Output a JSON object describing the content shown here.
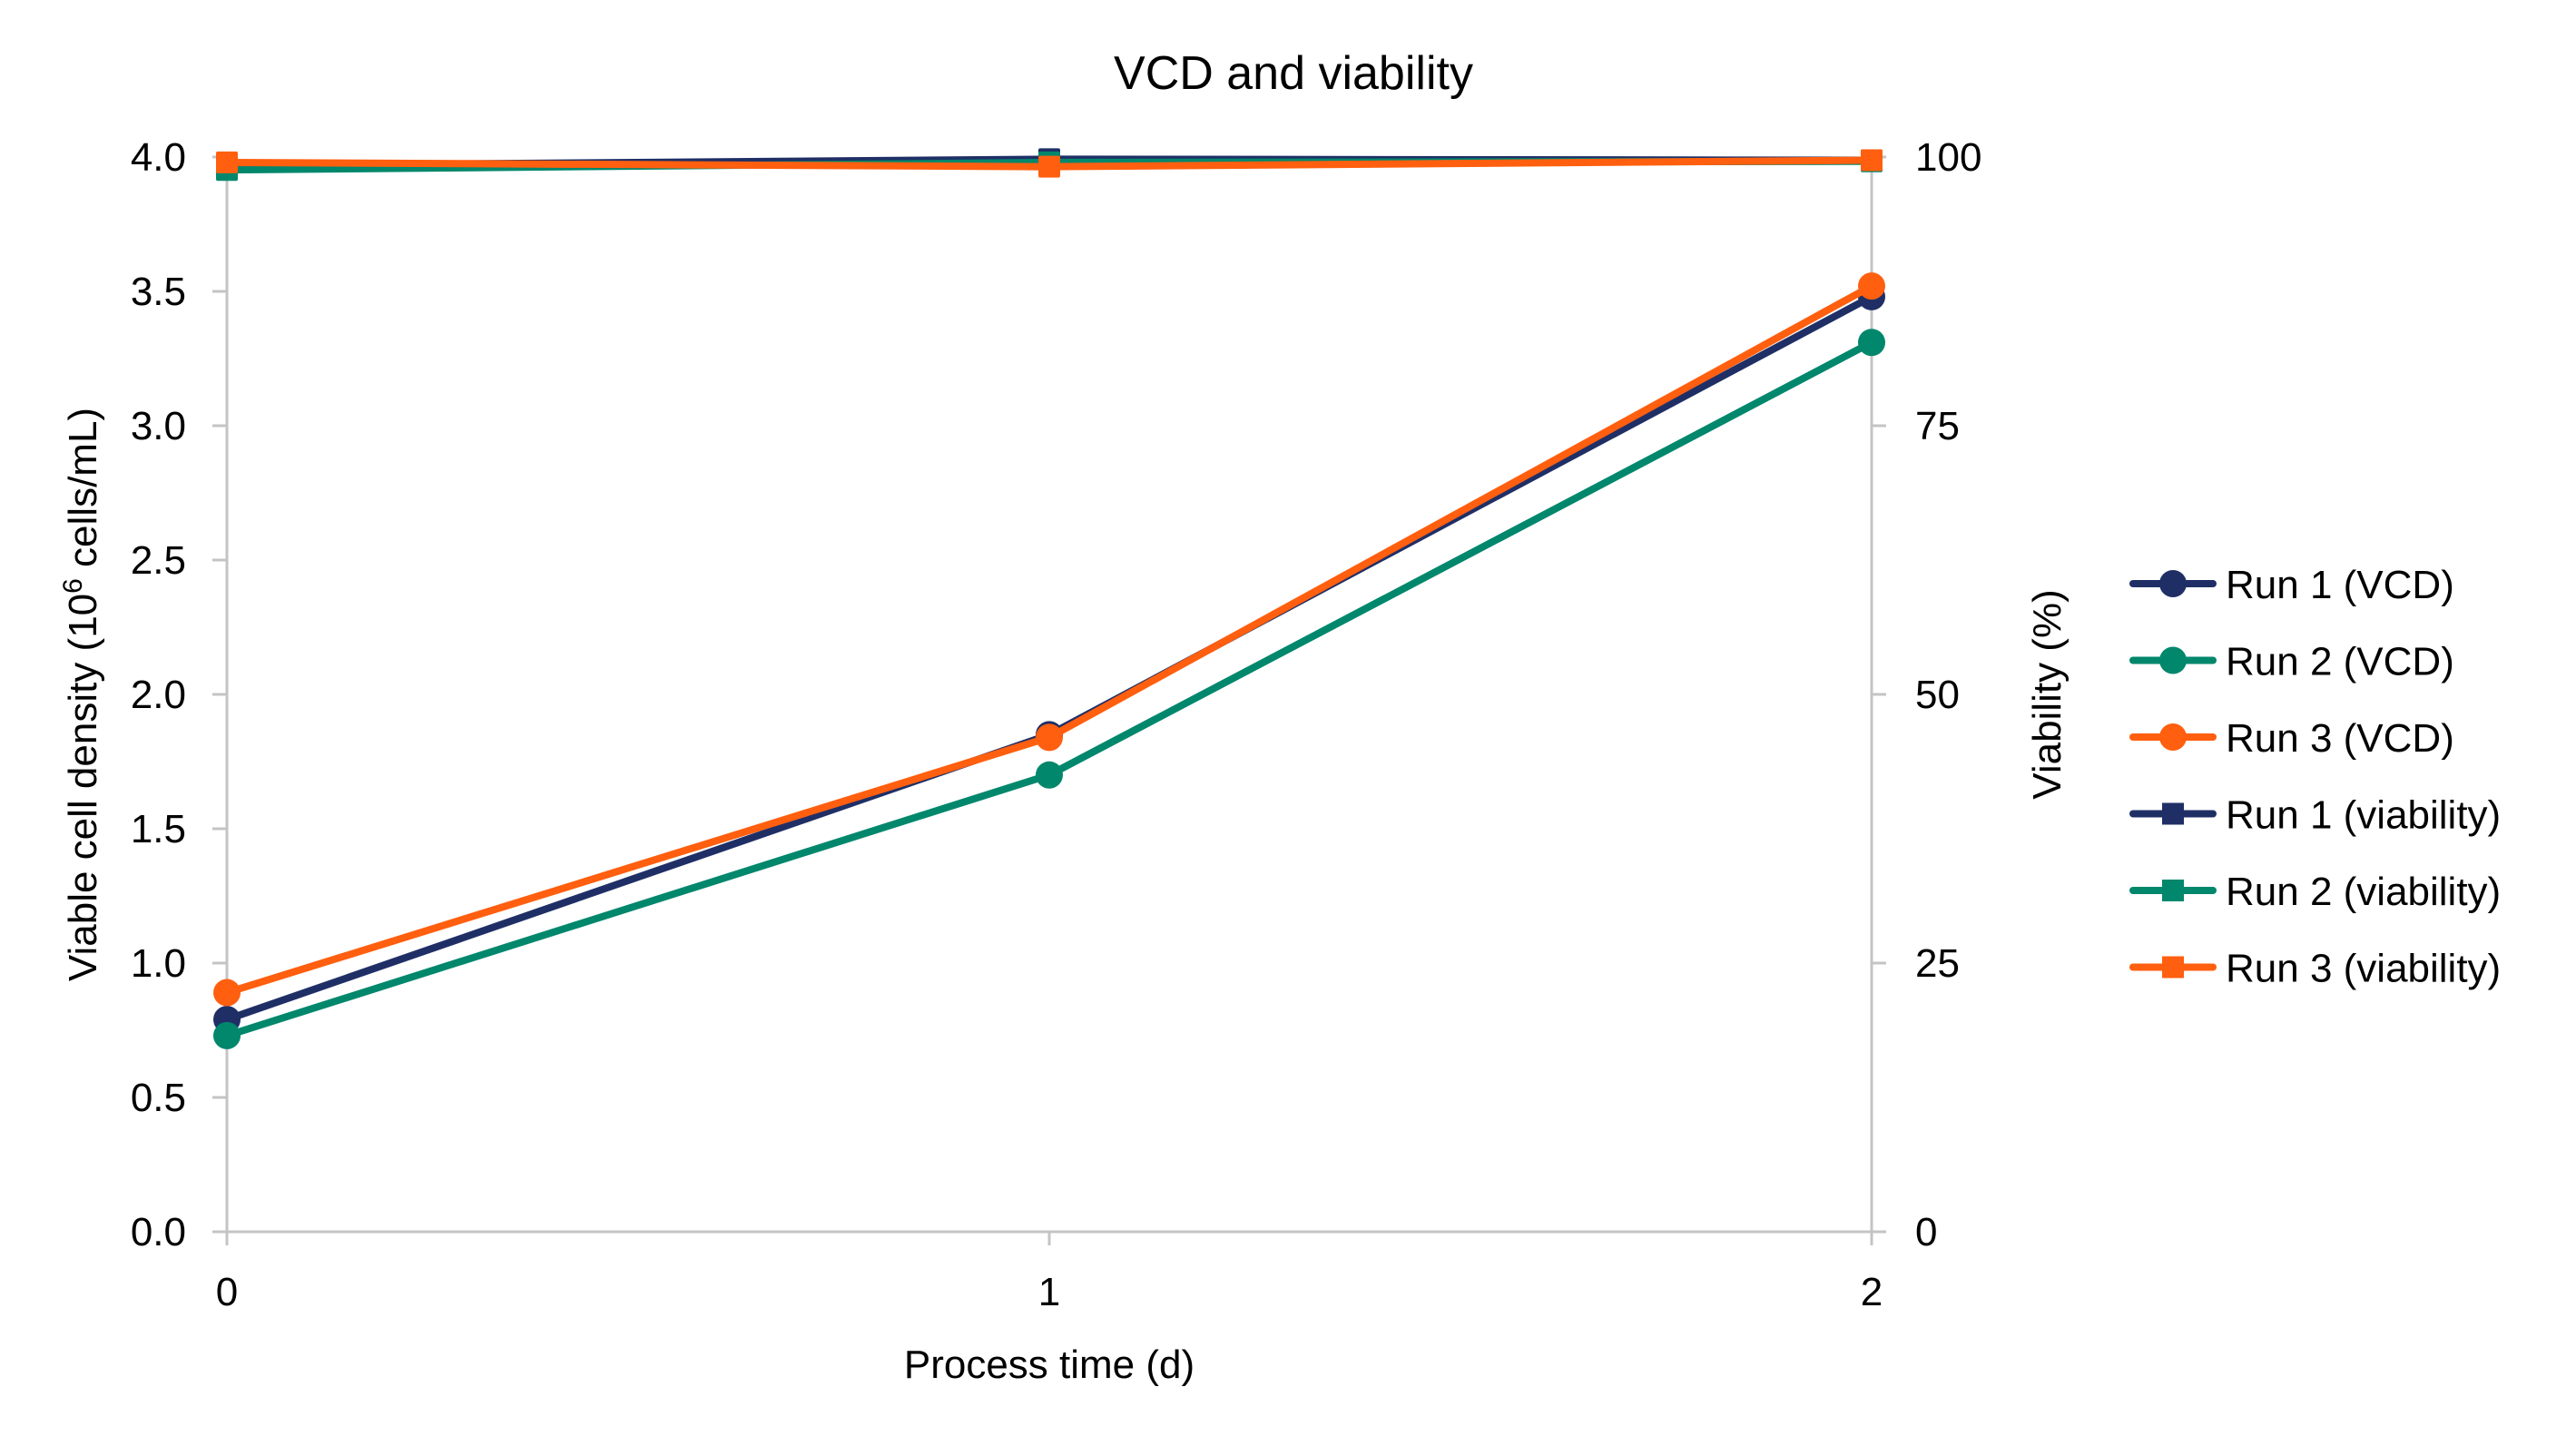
{
  "chart_data": {
    "type": "line",
    "title": "VCD and viability",
    "xlabel": "Process time (d)",
    "ylabel": "Viable cell density (10^6 cells/mL)",
    "ylabel_parts": {
      "pre": "Viable cell density (10",
      "sup": "6",
      "post": " cells/mL)"
    },
    "y2label": "Viability (%)",
    "x": [
      0,
      1,
      2
    ],
    "x_ticks": [
      "0",
      "1",
      "2"
    ],
    "xlim": [
      0,
      2
    ],
    "ylim": [
      0,
      4.0
    ],
    "y_ticks": [
      "0.0",
      "0.5",
      "1.0",
      "1.5",
      "2.0",
      "2.5",
      "3.0",
      "3.5",
      "4.0"
    ],
    "y2lim": [
      0,
      100
    ],
    "y2_ticks": [
      "0",
      "25",
      "50",
      "75",
      "100"
    ],
    "grid": false,
    "legend_position": "right",
    "series": [
      {
        "name": "Run 1 (VCD)",
        "axis": "left",
        "marker": "circle",
        "color": "#1f2f66",
        "values": [
          0.79,
          1.85,
          3.48
        ]
      },
      {
        "name": "Run 2 (VCD)",
        "axis": "left",
        "marker": "circle",
        "color": "#00876c",
        "values": [
          0.73,
          1.7,
          3.31
        ]
      },
      {
        "name": "Run 3 (VCD)",
        "axis": "left",
        "marker": "circle",
        "color": "#ff5f0f",
        "values": [
          0.89,
          1.84,
          3.52
        ]
      },
      {
        "name": "Run 1 (viability)",
        "axis": "right",
        "marker": "square",
        "color": "#1f2f66",
        "values": [
          99.2,
          99.8,
          99.7
        ]
      },
      {
        "name": "Run 2 (viability)",
        "axis": "right",
        "marker": "square",
        "color": "#00876c",
        "values": [
          98.8,
          99.5,
          99.6
        ]
      },
      {
        "name": "Run 3 (viability)",
        "axis": "right",
        "marker": "square",
        "color": "#ff5f0f",
        "values": [
          99.5,
          99.1,
          99.7
        ]
      }
    ]
  }
}
